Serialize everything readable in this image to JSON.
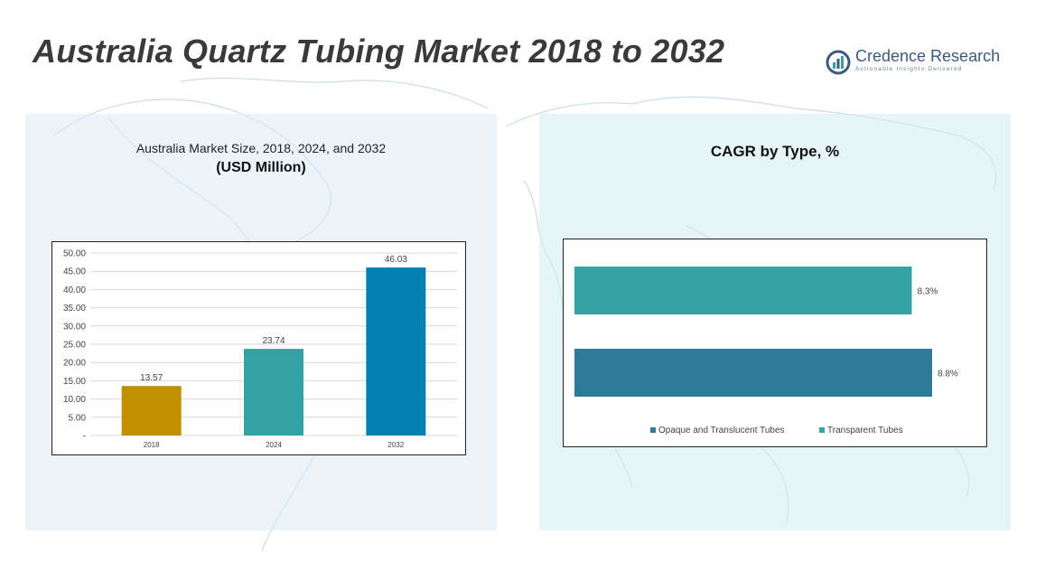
{
  "title": "Australia Quartz Tubing Market 2018 to 2032",
  "logo": {
    "name": "Credence Research",
    "tagline": "Actionable Insights Delivered"
  },
  "left_panel": {
    "title": "Australia Market Size, 2018, 2024, and 2032",
    "subtitle": "(USD Million)"
  },
  "right_panel": {
    "title": "CAGR by Type, %"
  },
  "colors": {
    "bar_2018": "#bf8f00",
    "bar_2024": "#35a3a3",
    "bar_2032": "#0480b2",
    "opaque": "#2f7a99",
    "transparent": "#35a3a3"
  },
  "chart_data": [
    {
      "type": "bar",
      "title": "Australia Market Size, 2018, 2024, and 2032",
      "subtitle": "(USD Million)",
      "categories": [
        "2018",
        "2024",
        "2032"
      ],
      "values": [
        13.57,
        23.74,
        46.03
      ],
      "value_labels": [
        "13.57",
        "23.74",
        "46.03"
      ],
      "ylim": [
        0,
        50
      ],
      "yticks": [
        "-",
        "5.00",
        "10.00",
        "15.00",
        "20.00",
        "25.00",
        "30.00",
        "35.00",
        "40.00",
        "45.00",
        "50.00"
      ],
      "grid": true,
      "colors": [
        "#bf8f00",
        "#35a3a3",
        "#0480b2"
      ]
    },
    {
      "type": "bar",
      "orientation": "horizontal",
      "title": "CAGR by Type, %",
      "categories": [
        "Transparent Tubes",
        "Opaque and Translucent Tubes"
      ],
      "values": [
        8.3,
        8.8
      ],
      "value_labels": [
        "8.3%",
        "8.8%"
      ],
      "legend": [
        "Opaque and Translucent Tubes",
        "Transparent Tubes"
      ],
      "legend_position": "bottom",
      "colors": [
        "#35a3a3",
        "#2f7a99"
      ]
    }
  ]
}
